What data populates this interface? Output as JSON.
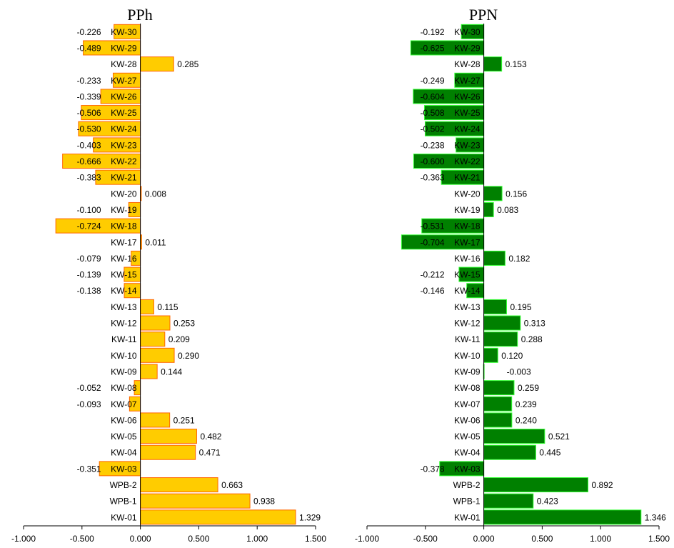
{
  "chart_data": [
    {
      "type": "bar",
      "orientation": "horizontal",
      "title": "PPh",
      "categories": [
        "KW-30",
        "KW-29",
        "KW-28",
        "KW-27",
        "KW-26",
        "KW-25",
        "KW-24",
        "KW-23",
        "KW-22",
        "KW-21",
        "KW-20",
        "KW-19",
        "KW-18",
        "KW-17",
        "KW-16",
        "KW-15",
        "KW-14",
        "KW-13",
        "KW-12",
        "KW-11",
        "KW-10",
        "KW-09",
        "KW-08",
        "KW-07",
        "KW-06",
        "KW-05",
        "KW-04",
        "KW-03",
        "WPB-2",
        "WPB-1",
        "KW-01"
      ],
      "values": [
        -0.226,
        -0.489,
        0.285,
        -0.233,
        -0.339,
        -0.506,
        -0.53,
        -0.403,
        -0.666,
        -0.383,
        0.008,
        -0.1,
        -0.724,
        0.011,
        -0.079,
        -0.139,
        -0.138,
        0.115,
        0.253,
        0.209,
        0.29,
        0.144,
        -0.052,
        -0.093,
        0.251,
        0.482,
        0.471,
        -0.351,
        0.663,
        0.938,
        1.329
      ],
      "value_labels": [
        "-0.226",
        "-0.489",
        "0.285",
        "-0.233",
        "-0.339",
        "-0.506",
        "-0.530",
        "-0.403",
        "-0.666",
        "-0.383",
        "0.008",
        "-0.100",
        "-0.724",
        "0.011",
        "-0.079",
        "-0.139",
        "-0.138",
        "0.115",
        "0.253",
        "0.209",
        "0.290",
        "0.144",
        "-0.052",
        "-0.093",
        "0.251",
        "0.482",
        "0.471",
        "-0.351",
        "0.663",
        "0.938",
        "1.329"
      ],
      "xlim": [
        -1.0,
        1.5
      ],
      "xticks": [
        "-1.000",
        "-0.500",
        "0.000",
        "0.500",
        "1.000",
        "1.500"
      ],
      "xtick_values": [
        -1.0,
        -0.5,
        0.0,
        0.5,
        1.0,
        1.5
      ],
      "grid": false,
      "bar_color": "#FFCC00",
      "bar_edge_color": "#FF6600"
    },
    {
      "type": "bar",
      "orientation": "horizontal",
      "title": "PPN",
      "categories": [
        "KW-30",
        "KW-29",
        "KW-28",
        "KW-27",
        "KW-26",
        "KW-25",
        "KW-24",
        "KW-23",
        "KW-22",
        "KW-21",
        "KW-20",
        "KW-19",
        "KW-18",
        "KW-17",
        "KW-16",
        "KW-15",
        "KW-14",
        "KW-13",
        "KW-12",
        "KW-11",
        "KW-10",
        "KW-09",
        "KW-08",
        "KW-07",
        "KW-06",
        "KW-05",
        "KW-04",
        "KW-03",
        "WPB-2",
        "WPB-1",
        "KW-01"
      ],
      "values": [
        -0.192,
        -0.625,
        0.153,
        -0.249,
        -0.604,
        -0.508,
        -0.502,
        -0.238,
        -0.6,
        -0.363,
        0.156,
        0.083,
        -0.531,
        -0.704,
        0.182,
        -0.212,
        -0.146,
        0.195,
        0.313,
        0.288,
        0.12,
        -0.003,
        0.259,
        0.239,
        0.24,
        0.521,
        0.445,
        -0.378,
        0.892,
        0.423,
        1.346
      ],
      "value_labels": [
        "-0.192",
        "-0.625",
        "0.153",
        "-0.249",
        "-0.604",
        "-0.508",
        "-0.502",
        "-0.238",
        "-0.600",
        "-0.363",
        "0.156",
        "0.083",
        "-0.531",
        "-0.704",
        "0.182",
        "-0.212",
        "-0.146",
        "0.195",
        "0.313",
        "0.288",
        "0.120",
        "-0.003",
        "0.259",
        "0.239",
        "0.240",
        "0.521",
        "0.445",
        "-0.378",
        "0.892",
        "0.423",
        "1.346"
      ],
      "xlim": [
        -1.0,
        1.5
      ],
      "xticks": [
        "-1.000",
        "-0.500",
        "0.000",
        "0.500",
        "1.000",
        "1.500"
      ],
      "xtick_values": [
        -1.0,
        -0.5,
        0.0,
        0.5,
        1.0,
        1.5
      ],
      "grid": false,
      "bar_color": "#008000",
      "bar_edge_color": "#33FF33"
    }
  ]
}
